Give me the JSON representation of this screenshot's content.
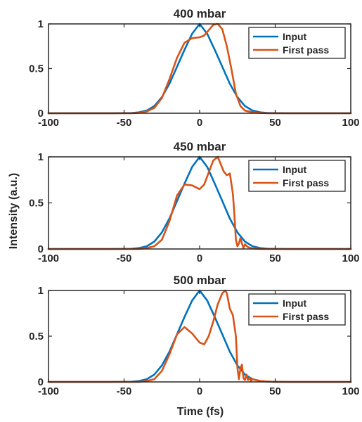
{
  "figure": {
    "ylabel": "Intensity (a.u.)",
    "xlabel": "Time (fs)"
  },
  "colors": {
    "input": "#0072BD",
    "first_pass": "#D95319",
    "axis": "#262626"
  },
  "chart_data": [
    {
      "type": "line",
      "title": "400 mbar",
      "xlim": [
        -100,
        100
      ],
      "ylim": [
        0,
        1
      ],
      "xticks": [
        "-100",
        "-50",
        "0",
        "50",
        "100"
      ],
      "yticks": [
        "0",
        "0.5",
        "1"
      ],
      "legend": {
        "placement": "top-right",
        "entries": [
          "Input",
          "First pass"
        ]
      },
      "grid": false,
      "series": [
        {
          "name": "Input",
          "color": "#0072BD",
          "x": [
            -100,
            -60,
            -45,
            -40,
            -35,
            -30,
            -25,
            -20,
            -15,
            -10,
            -5,
            0,
            5,
            10,
            15,
            20,
            25,
            30,
            35,
            40,
            45,
            60,
            100
          ],
          "y": [
            0,
            0,
            0.002,
            0.01,
            0.03,
            0.08,
            0.18,
            0.33,
            0.52,
            0.71,
            0.89,
            1.0,
            0.89,
            0.71,
            0.52,
            0.33,
            0.18,
            0.08,
            0.03,
            0.01,
            0.002,
            0,
            0
          ]
        },
        {
          "name": "First pass",
          "color": "#D95319",
          "x": [
            -100,
            -45,
            -40,
            -35,
            -30,
            -25,
            -20,
            -15,
            -10,
            -5,
            0,
            3,
            6,
            9,
            12,
            15,
            18,
            21,
            24,
            27,
            30,
            35,
            40,
            45,
            100
          ],
          "y": [
            0,
            0,
            0.005,
            0.02,
            0.06,
            0.17,
            0.38,
            0.62,
            0.79,
            0.84,
            0.85,
            0.87,
            0.93,
            0.99,
            1.0,
            0.94,
            0.75,
            0.5,
            0.22,
            0.08,
            0.03,
            0.01,
            0.003,
            0,
            0
          ]
        }
      ]
    },
    {
      "type": "line",
      "title": "450 mbar",
      "xlim": [
        -100,
        100
      ],
      "ylim": [
        0,
        1
      ],
      "xticks": [
        "-100",
        "-50",
        "0",
        "50",
        "100"
      ],
      "yticks": [
        "0",
        "0.5",
        "1"
      ],
      "legend": {
        "placement": "top-right",
        "entries": [
          "Input",
          "First pass"
        ]
      },
      "grid": false,
      "series": [
        {
          "name": "Input",
          "color": "#0072BD",
          "x": [
            -100,
            -60,
            -45,
            -40,
            -35,
            -30,
            -25,
            -20,
            -15,
            -10,
            -5,
            0,
            5,
            10,
            15,
            20,
            25,
            30,
            35,
            40,
            45,
            60,
            100
          ],
          "y": [
            0,
            0,
            0.002,
            0.01,
            0.03,
            0.08,
            0.18,
            0.33,
            0.52,
            0.71,
            0.89,
            1.0,
            0.89,
            0.71,
            0.52,
            0.33,
            0.18,
            0.08,
            0.03,
            0.01,
            0.002,
            0,
            0
          ]
        },
        {
          "name": "First pass",
          "color": "#D95319",
          "x": [
            -100,
            -40,
            -35,
            -30,
            -25,
            -20,
            -15,
            -10,
            -5,
            0,
            3,
            6,
            9,
            12,
            14,
            16,
            18,
            20,
            22,
            23,
            24,
            25,
            26,
            27,
            28,
            29,
            30,
            32,
            35,
            40,
            100
          ],
          "y": [
            0,
            0,
            0.01,
            0.03,
            0.1,
            0.3,
            0.58,
            0.7,
            0.69,
            0.65,
            0.7,
            0.83,
            0.96,
            1.0,
            0.92,
            0.84,
            0.8,
            0.82,
            0.6,
            0.38,
            0.1,
            0.03,
            0.06,
            0.12,
            0.06,
            0.01,
            0.05,
            0.02,
            0.005,
            0,
            0
          ]
        }
      ]
    },
    {
      "type": "line",
      "title": "500 mbar",
      "xlim": [
        -100,
        100
      ],
      "ylim": [
        0,
        1
      ],
      "xticks": [
        "-100",
        "-50",
        "0",
        "50",
        "100"
      ],
      "yticks": [
        "0",
        "0.5",
        "1"
      ],
      "legend": {
        "placement": "top-right",
        "entries": [
          "Input",
          "First pass"
        ]
      },
      "grid": false,
      "series": [
        {
          "name": "Input",
          "color": "#0072BD",
          "x": [
            -100,
            -60,
            -45,
            -40,
            -35,
            -30,
            -25,
            -20,
            -15,
            -10,
            -5,
            0,
            5,
            10,
            15,
            20,
            25,
            30,
            35,
            40,
            45,
            60,
            100
          ],
          "y": [
            0,
            0,
            0.002,
            0.01,
            0.03,
            0.08,
            0.18,
            0.33,
            0.52,
            0.71,
            0.89,
            1.0,
            0.89,
            0.71,
            0.52,
            0.33,
            0.18,
            0.08,
            0.03,
            0.01,
            0.002,
            0,
            0
          ]
        },
        {
          "name": "First pass",
          "color": "#D95319",
          "x": [
            -100,
            -40,
            -35,
            -30,
            -25,
            -20,
            -15,
            -10,
            -5,
            0,
            3,
            6,
            9,
            12,
            15,
            17,
            18,
            20,
            22,
            24,
            25,
            26,
            27,
            28,
            29,
            30,
            31,
            32,
            33,
            34,
            35,
            37,
            40,
            45,
            50,
            100
          ],
          "y": [
            0,
            0,
            0.01,
            0.03,
            0.12,
            0.3,
            0.52,
            0.6,
            0.53,
            0.43,
            0.41,
            0.5,
            0.66,
            0.85,
            0.97,
            1.0,
            0.97,
            0.8,
            0.73,
            0.5,
            0.15,
            0.03,
            0.15,
            0.19,
            0.04,
            0.02,
            0.08,
            0.02,
            0.05,
            0.01,
            0.03,
            0.02,
            0.01,
            0.005,
            0,
            0
          ]
        }
      ]
    }
  ]
}
